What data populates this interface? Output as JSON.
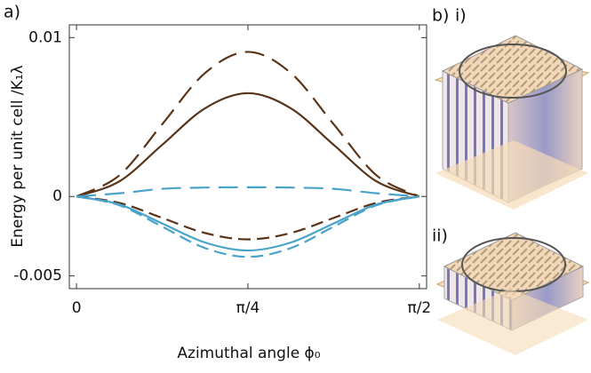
{
  "chart_data": {
    "type": "line",
    "y_label": "Energy per unit cell /K₁λ",
    "x_label": "Azimuthal angle ϕ₀",
    "annotations": [
      "a)",
      "b)",
      "i)",
      "ii)"
    ],
    "x": [
      0,
      0.19635,
      0.3927,
      0.58905,
      0.7854,
      0.98175,
      1.1781,
      1.37445,
      1.5708
    ],
    "series": [
      {
        "color": "#5a3418",
        "dash": "solid",
        "values": [
          0,
          0.00095,
          0.00325,
          0.00555,
          0.0065,
          0.00555,
          0.00325,
          0.00095,
          0
        ]
      },
      {
        "color": "#5a3418",
        "dash": "long",
        "values": [
          0,
          0.00133,
          0.00455,
          0.00777,
          0.0091,
          0.00777,
          0.00455,
          0.00133,
          0
        ]
      },
      {
        "color": "#4aa3c8",
        "dash": "long",
        "values": [
          0,
          0.0002,
          0.00048,
          0.00056,
          0.00058,
          0.00056,
          0.00048,
          0.0002,
          0
        ]
      },
      {
        "color": "#5a3418",
        "dash": "medium",
        "values": [
          0,
          -0.0004,
          -0.00135,
          -0.0023,
          -0.0027,
          -0.0023,
          -0.00135,
          -0.0004,
          0
        ]
      },
      {
        "color": "#4aa3c8",
        "dash": "solid",
        "values": [
          0,
          -0.0005,
          -0.0017,
          -0.0029,
          -0.0034,
          -0.0029,
          -0.0017,
          -0.0005,
          0
        ]
      },
      {
        "color": "#4aa3c8",
        "dash": "medium",
        "values": [
          0,
          -0.00055,
          -0.0019,
          -0.00325,
          -0.0038,
          -0.00325,
          -0.0019,
          -0.00055,
          0
        ]
      }
    ],
    "xlim": [
      -0.033,
      1.604
    ],
    "ylim": [
      -0.0058,
      0.0108
    ],
    "xticks": [
      0,
      {
        "value": 0.7854,
        "label": "π/4"
      },
      {
        "value": 1.5708,
        "label": "π/2"
      }
    ],
    "yticks": [
      0.01,
      0,
      -0.005
    ]
  }
}
